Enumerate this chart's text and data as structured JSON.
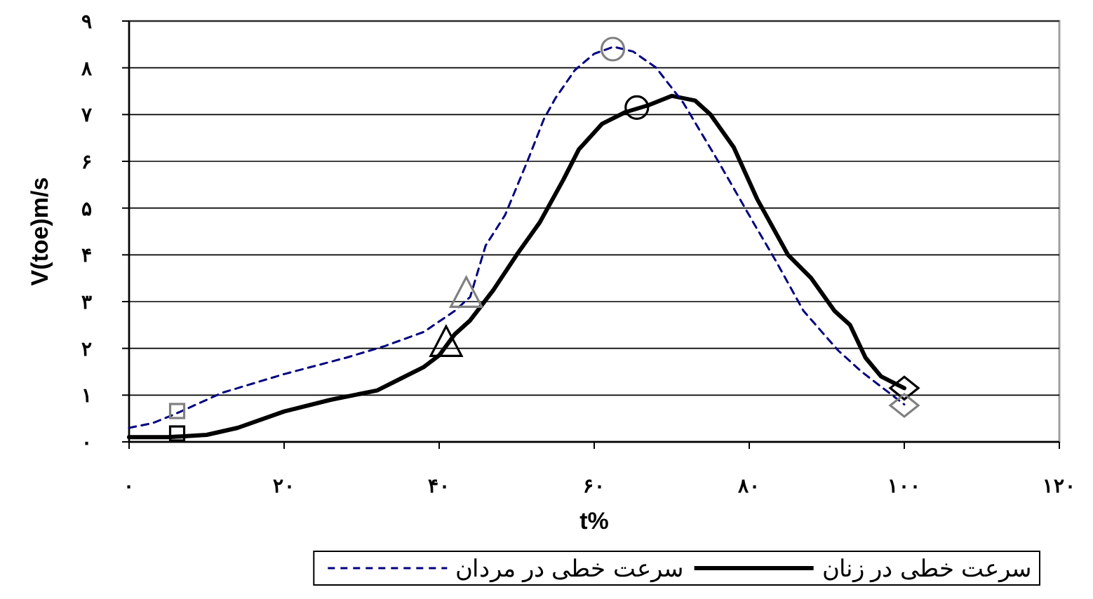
{
  "chart_data": {
    "type": "line",
    "xlabel": "t%",
    "ylabel": "V(toe)m/s",
    "xlim": [
      0,
      120
    ],
    "xticks": [
      {
        "value": 0,
        "label": "۰"
      },
      {
        "value": 20,
        "label": "۲۰"
      },
      {
        "value": 40,
        "label": "۴۰"
      },
      {
        "value": 60,
        "label": "۶۰"
      },
      {
        "value": 80,
        "label": "۸۰"
      },
      {
        "value": 100,
        "label": "۱۰۰"
      },
      {
        "value": 120,
        "label": "۱۲۰"
      }
    ],
    "ylim": [
      0,
      9
    ],
    "yticks": [
      {
        "value": 0,
        "label": "۰"
      },
      {
        "value": 1,
        "label": "۱"
      },
      {
        "value": 2,
        "label": "۲"
      },
      {
        "value": 3,
        "label": "۳"
      },
      {
        "value": 4,
        "label": "۴"
      },
      {
        "value": 5,
        "label": "۵"
      },
      {
        "value": 6,
        "label": "۶"
      },
      {
        "value": 7,
        "label": "۷"
      },
      {
        "value": 8,
        "label": "۸"
      },
      {
        "value": 9,
        "label": "۹"
      }
    ],
    "grid": "y",
    "legend": "bottom",
    "marker": "none",
    "series": [
      {
        "name": "سرعت خطی در زنان",
        "color": "#000000",
        "line_style": "solid",
        "x": [
          0,
          5,
          10,
          14,
          20,
          26,
          32,
          35,
          38,
          40,
          42,
          44,
          47,
          50,
          53,
          56,
          58,
          61,
          64,
          67,
          70,
          73,
          75,
          78,
          81,
          85,
          88,
          91,
          93,
          95,
          97,
          100
        ],
        "values": [
          0.1,
          0.1,
          0.15,
          0.3,
          0.65,
          0.9,
          1.1,
          1.35,
          1.6,
          1.85,
          2.3,
          2.6,
          3.25,
          4.0,
          4.7,
          5.6,
          6.25,
          6.8,
          7.05,
          7.2,
          7.4,
          7.3,
          7.0,
          6.3,
          5.2,
          4.0,
          3.5,
          2.8,
          2.5,
          1.8,
          1.4,
          1.15
        ]
      },
      {
        "name": "سرعت خطی در مردان",
        "color": "#000080",
        "line_style": "dashed",
        "x": [
          0,
          3,
          6,
          12,
          20,
          28,
          33,
          38,
          42,
          44,
          46,
          48.5,
          51.5,
          53.5,
          55,
          57.5,
          60,
          62.5,
          65,
          68,
          71.5,
          76,
          80.5,
          83.5,
          87,
          91.5,
          94.5,
          100
        ],
        "values": [
          0.3,
          0.4,
          0.6,
          1.05,
          1.45,
          1.8,
          2.05,
          2.35,
          2.8,
          3.1,
          4.2,
          4.85,
          6.05,
          6.9,
          7.35,
          7.95,
          8.3,
          8.45,
          8.35,
          8.0,
          7.25,
          6.0,
          4.7,
          3.85,
          2.8,
          1.95,
          1.5,
          0.8
        ]
      },
      {
        "type": "scatter",
        "marker": "square",
        "x": [
          6.2,
          6.2
        ],
        "values": [
          0.18,
          0.66
        ],
        "colors": [
          "#000000",
          "#808080"
        ]
      },
      {
        "type": "scatter",
        "marker": "triangle",
        "x": [
          40.9,
          43.5
        ],
        "values": [
          2.05,
          3.1
        ],
        "colors": [
          "#000000",
          "#808080"
        ]
      },
      {
        "type": "scatter",
        "marker": "circle",
        "x": [
          65.5,
          62.4
        ],
        "values": [
          7.15,
          8.4
        ],
        "colors": [
          "#000000",
          "#808080"
        ]
      },
      {
        "type": "scatter",
        "marker": "diamond",
        "x": [
          100,
          100
        ],
        "values": [
          1.15,
          0.78
        ],
        "colors": [
          "#000000",
          "#808080"
        ]
      }
    ]
  }
}
